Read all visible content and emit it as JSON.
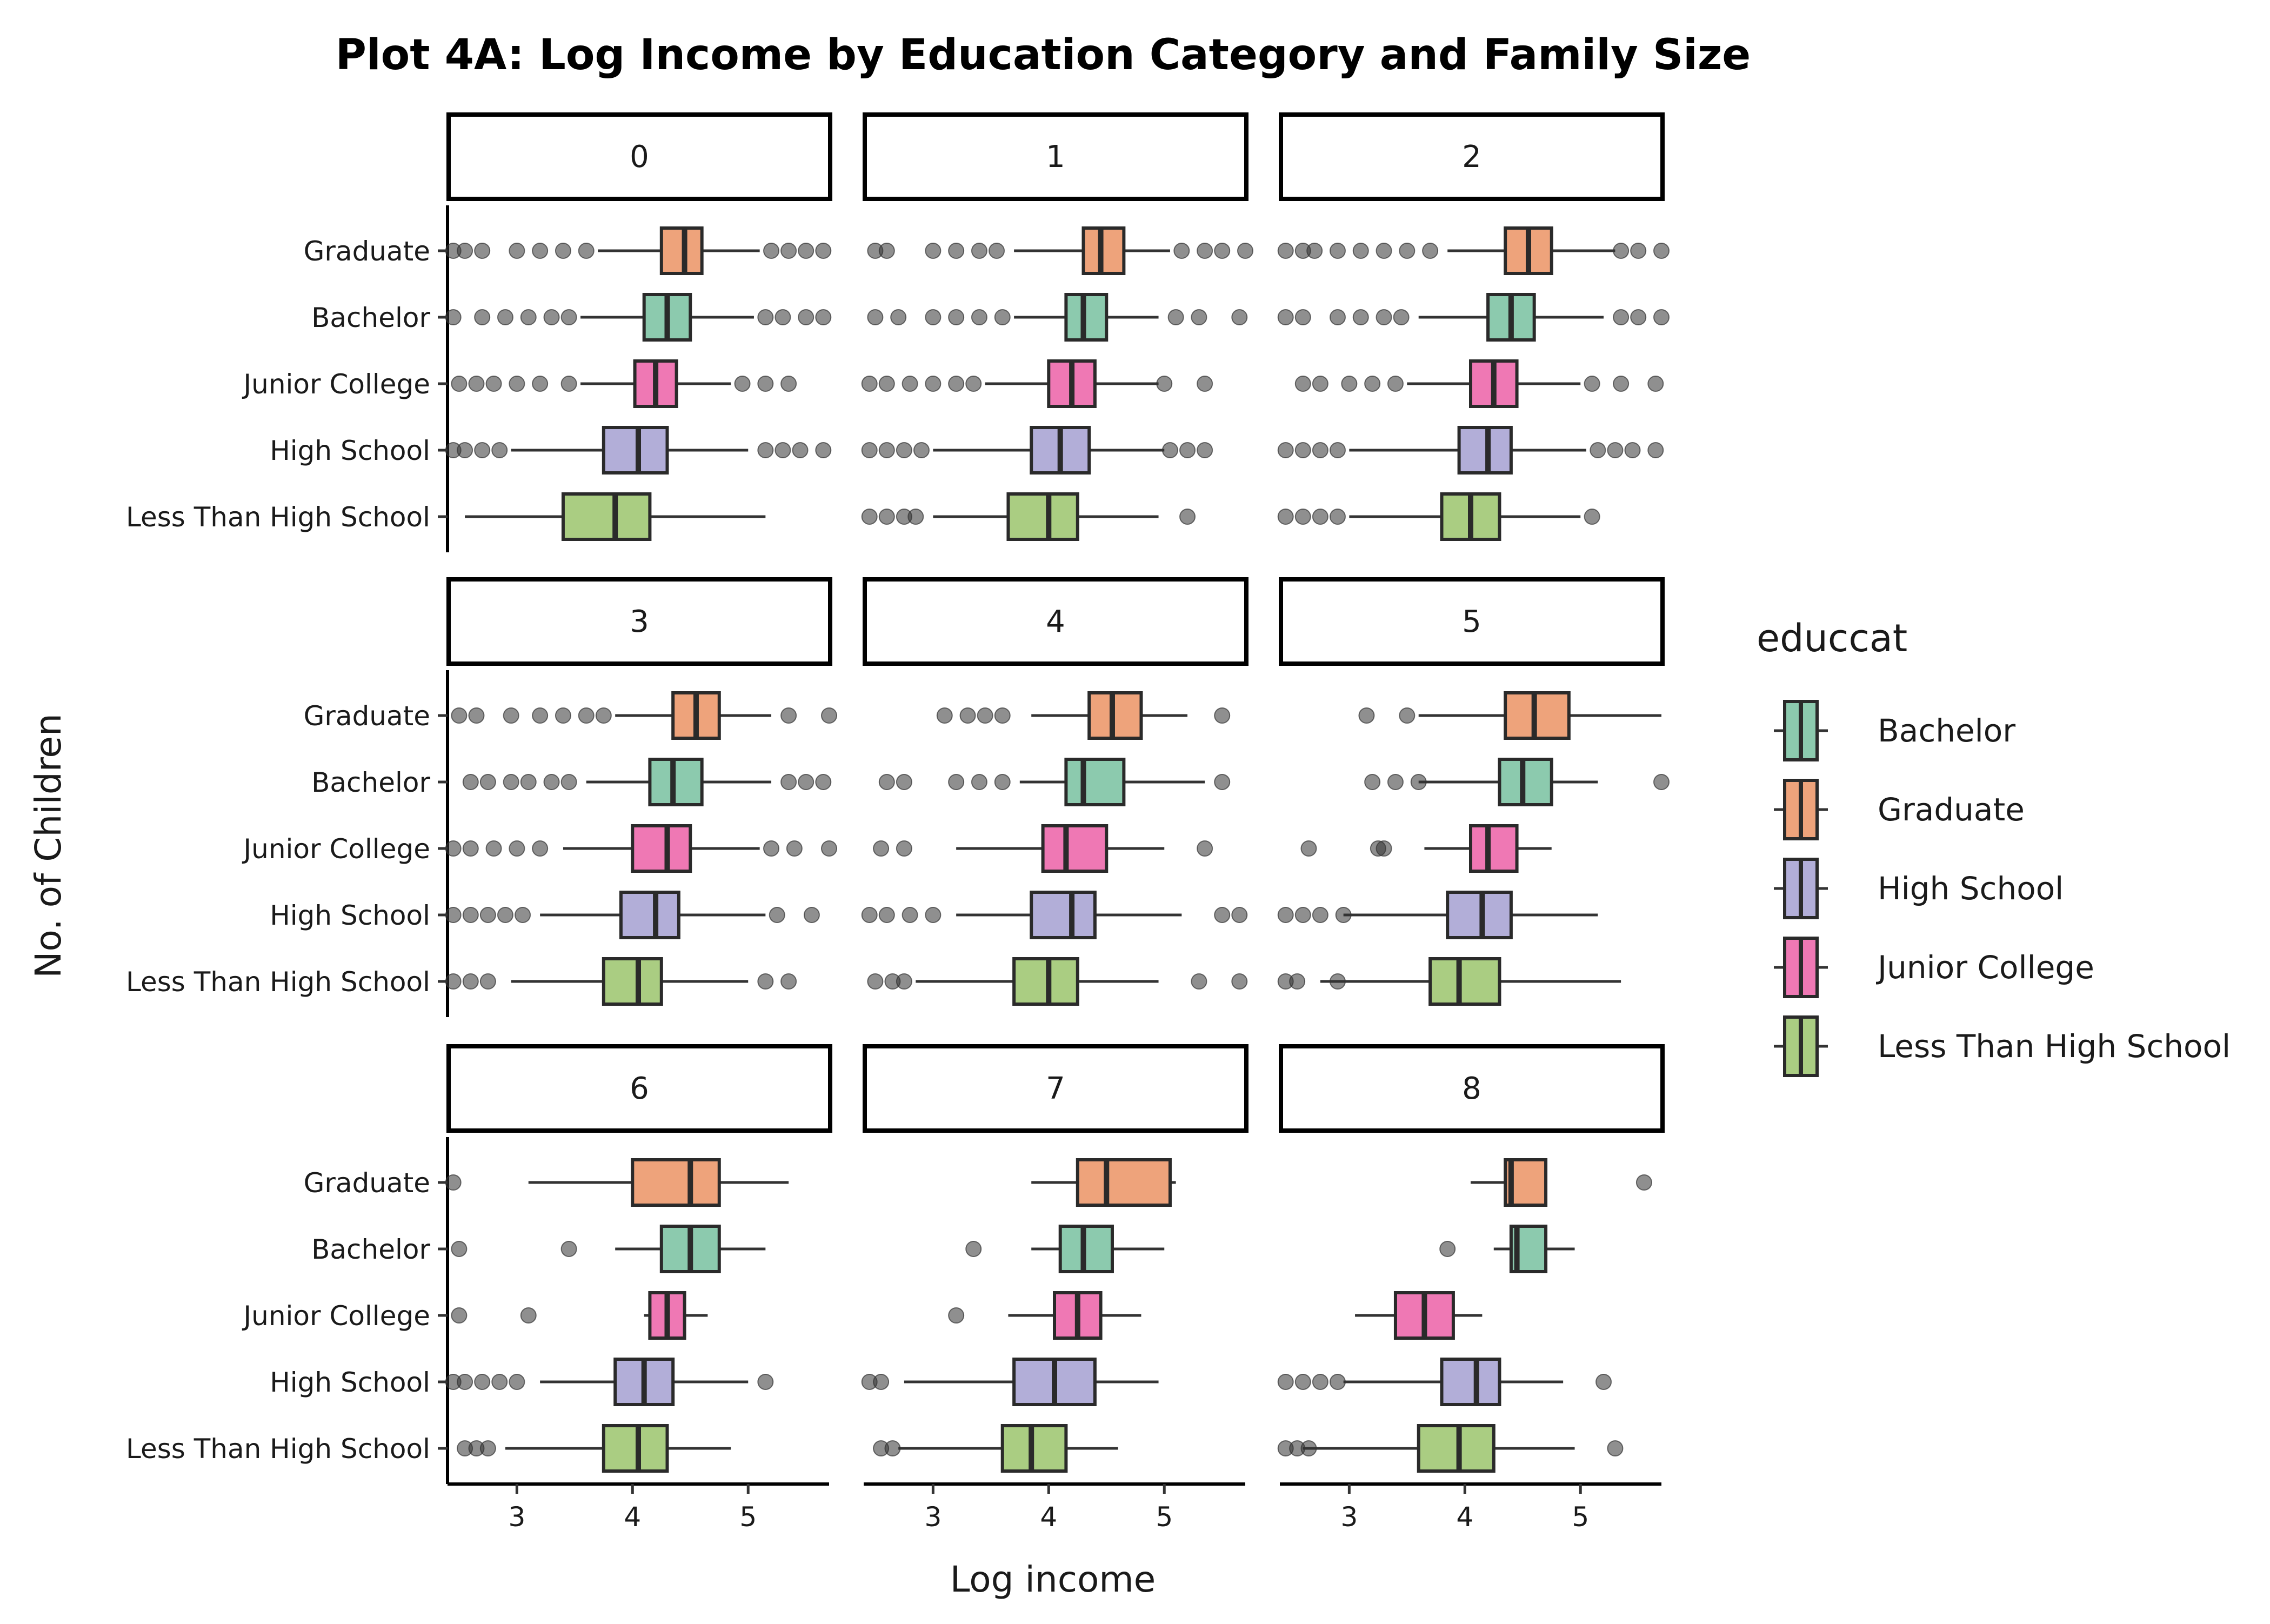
{
  "chart_data": {
    "type": "boxplot",
    "title": "Plot 4A: Log Income by Education Category and Family Size",
    "xlabel": "Log income",
    "ylabel": "No. of Children",
    "xlim": [
      2.4,
      5.7
    ],
    "x_ticks": [
      "3",
      "4",
      "5"
    ],
    "x_tick_values": [
      3,
      4,
      5
    ],
    "y_categories": [
      "Graduate",
      "Bachelor",
      "Junior College",
      "High School",
      "Less Than High School"
    ],
    "facet_variable": "No. of Children",
    "grid": false,
    "legend": {
      "title": "educcat",
      "position": "right",
      "items": [
        {
          "label": "Bachelor",
          "color": "#8ccaae"
        },
        {
          "label": "Graduate",
          "color": "#eea37b"
        },
        {
          "label": "High School",
          "color": "#b2aed8"
        },
        {
          "label": "Junior College",
          "color": "#ef78b4"
        },
        {
          "label": "Less Than High School",
          "color": "#aacd82"
        }
      ]
    },
    "colors": {
      "Bachelor": "#8ccaae",
      "Graduate": "#eea37b",
      "High School": "#b2aed8",
      "Junior College": "#ef78b4",
      "Less Than High School": "#aacd82"
    },
    "facets": [
      {
        "label": "0",
        "boxes": {
          "Graduate": {
            "whisker_low": 3.7,
            "q1": 4.25,
            "median": 4.45,
            "q3": 4.6,
            "whisker_high": 5.1,
            "outliers": [
              2.45,
              2.55,
              2.7,
              3.0,
              3.2,
              3.4,
              3.6,
              5.2,
              5.35,
              5.5,
              5.65
            ]
          },
          "Bachelor": {
            "whisker_low": 3.55,
            "q1": 4.1,
            "median": 4.3,
            "q3": 4.5,
            "whisker_high": 5.05,
            "outliers": [
              2.45,
              2.7,
              2.9,
              3.1,
              3.3,
              3.45,
              5.15,
              5.3,
              5.5,
              5.65
            ]
          },
          "Junior College": {
            "whisker_low": 3.55,
            "q1": 4.02,
            "median": 4.2,
            "q3": 4.38,
            "whisker_high": 4.85,
            "outliers": [
              2.5,
              2.65,
              2.8,
              3.0,
              3.2,
              3.45,
              4.95,
              5.15,
              5.35
            ]
          },
          "High School": {
            "whisker_low": 2.95,
            "q1": 3.75,
            "median": 4.05,
            "q3": 4.3,
            "whisker_high": 5.0,
            "outliers": [
              2.45,
              2.55,
              2.7,
              2.85,
              5.15,
              5.3,
              5.45,
              5.65
            ]
          },
          "Less Than High School": {
            "whisker_low": 2.55,
            "q1": 3.4,
            "median": 3.85,
            "q3": 4.15,
            "whisker_high": 5.15,
            "outliers": []
          }
        }
      },
      {
        "label": "1",
        "boxes": {
          "Graduate": {
            "whisker_low": 3.7,
            "q1": 4.3,
            "median": 4.45,
            "q3": 4.65,
            "whisker_high": 5.05,
            "outliers": [
              2.5,
              2.6,
              3.0,
              3.2,
              3.4,
              3.55,
              5.15,
              5.35,
              5.5,
              5.7
            ]
          },
          "Bachelor": {
            "whisker_low": 3.7,
            "q1": 4.15,
            "median": 4.3,
            "q3": 4.5,
            "whisker_high": 4.95,
            "outliers": [
              2.5,
              2.7,
              3.0,
              3.2,
              3.4,
              3.6,
              5.1,
              5.3,
              5.65
            ]
          },
          "Junior College": {
            "whisker_low": 3.45,
            "q1": 4.0,
            "median": 4.2,
            "q3": 4.4,
            "whisker_high": 4.95,
            "outliers": [
              2.45,
              2.6,
              2.8,
              3.0,
              3.2,
              3.35,
              5.0,
              5.35
            ]
          },
          "High School": {
            "whisker_low": 3.0,
            "q1": 3.85,
            "median": 4.1,
            "q3": 4.35,
            "whisker_high": 5.0,
            "outliers": [
              2.45,
              2.6,
              2.75,
              2.9,
              5.05,
              5.2,
              5.35
            ]
          },
          "Less Than High School": {
            "whisker_low": 3.0,
            "q1": 3.65,
            "median": 4.0,
            "q3": 4.25,
            "whisker_high": 4.95,
            "outliers": [
              2.45,
              2.6,
              2.75,
              2.85,
              5.2
            ]
          }
        }
      },
      {
        "label": "2",
        "boxes": {
          "Graduate": {
            "whisker_low": 3.85,
            "q1": 4.35,
            "median": 4.55,
            "q3": 4.75,
            "whisker_high": 5.3,
            "outliers": [
              2.45,
              2.6,
              2.7,
              2.9,
              3.1,
              3.3,
              3.5,
              3.7,
              5.35,
              5.5,
              5.7
            ]
          },
          "Bachelor": {
            "whisker_low": 3.6,
            "q1": 4.2,
            "median": 4.4,
            "q3": 4.6,
            "whisker_high": 5.2,
            "outliers": [
              2.45,
              2.6,
              2.9,
              3.1,
              3.3,
              3.45,
              5.35,
              5.5,
              5.7
            ]
          },
          "Junior College": {
            "whisker_low": 3.5,
            "q1": 4.05,
            "median": 4.25,
            "q3": 4.45,
            "whisker_high": 5.0,
            "outliers": [
              2.6,
              2.75,
              3.0,
              3.2,
              3.4,
              5.1,
              5.35,
              5.65
            ]
          },
          "High School": {
            "whisker_low": 3.0,
            "q1": 3.95,
            "median": 4.2,
            "q3": 4.4,
            "whisker_high": 5.05,
            "outliers": [
              2.45,
              2.6,
              2.75,
              2.9,
              5.15,
              5.3,
              5.45,
              5.65
            ]
          },
          "Less Than High School": {
            "whisker_low": 3.0,
            "q1": 3.8,
            "median": 4.05,
            "q3": 4.3,
            "whisker_high": 5.0,
            "outliers": [
              2.45,
              2.6,
              2.75,
              2.9,
              5.1
            ]
          }
        }
      },
      {
        "label": "3",
        "boxes": {
          "Graduate": {
            "whisker_low": 3.85,
            "q1": 4.35,
            "median": 4.55,
            "q3": 4.75,
            "whisker_high": 5.2,
            "outliers": [
              2.5,
              2.65,
              2.95,
              3.2,
              3.4,
              3.6,
              3.75,
              5.35,
              5.7
            ]
          },
          "Bachelor": {
            "whisker_low": 3.6,
            "q1": 4.15,
            "median": 4.35,
            "q3": 4.6,
            "whisker_high": 5.2,
            "outliers": [
              2.6,
              2.75,
              2.95,
              3.1,
              3.3,
              3.45,
              5.35,
              5.5,
              5.65
            ]
          },
          "Junior College": {
            "whisker_low": 3.4,
            "q1": 4.0,
            "median": 4.3,
            "q3": 4.5,
            "whisker_high": 5.1,
            "outliers": [
              2.45,
              2.6,
              2.8,
              3.0,
              3.2,
              5.2,
              5.4,
              5.7
            ]
          },
          "High School": {
            "whisker_low": 3.2,
            "q1": 3.9,
            "median": 4.2,
            "q3": 4.4,
            "whisker_high": 5.15,
            "outliers": [
              2.45,
              2.6,
              2.75,
              2.9,
              3.05,
              5.25,
              5.55
            ]
          },
          "Less Than High School": {
            "whisker_low": 2.95,
            "q1": 3.75,
            "median": 4.05,
            "q3": 4.25,
            "whisker_high": 5.0,
            "outliers": [
              2.45,
              2.6,
              2.75,
              5.15,
              5.35
            ]
          }
        }
      },
      {
        "label": "4",
        "boxes": {
          "Graduate": {
            "whisker_low": 3.85,
            "q1": 4.35,
            "median": 4.55,
            "q3": 4.8,
            "whisker_high": 5.2,
            "outliers": [
              3.1,
              3.3,
              3.45,
              3.6,
              5.5
            ]
          },
          "Bachelor": {
            "whisker_low": 3.75,
            "q1": 4.15,
            "median": 4.3,
            "q3": 4.65,
            "whisker_high": 5.35,
            "outliers": [
              2.6,
              2.75,
              3.2,
              3.4,
              3.6,
              5.5
            ]
          },
          "Junior College": {
            "whisker_low": 3.2,
            "q1": 3.95,
            "median": 4.15,
            "q3": 4.5,
            "whisker_high": 5.0,
            "outliers": [
              2.55,
              2.75,
              5.35
            ]
          },
          "High School": {
            "whisker_low": 3.2,
            "q1": 3.85,
            "median": 4.2,
            "q3": 4.4,
            "whisker_high": 5.15,
            "outliers": [
              2.45,
              2.6,
              2.8,
              3.0,
              5.5,
              5.65
            ]
          },
          "Less Than High School": {
            "whisker_low": 2.85,
            "q1": 3.7,
            "median": 4.0,
            "q3": 4.25,
            "whisker_high": 4.95,
            "outliers": [
              2.5,
              2.65,
              2.75,
              5.3,
              5.65
            ]
          }
        }
      },
      {
        "label": "5",
        "boxes": {
          "Graduate": {
            "whisker_low": 3.6,
            "q1": 4.35,
            "median": 4.6,
            "q3": 4.9,
            "whisker_high": 5.7,
            "outliers": [
              3.15,
              3.5
            ]
          },
          "Bachelor": {
            "whisker_low": 3.6,
            "q1": 4.3,
            "median": 4.5,
            "q3": 4.75,
            "whisker_high": 5.15,
            "outliers": [
              3.2,
              3.4,
              3.6,
              5.7
            ]
          },
          "Junior College": {
            "whisker_low": 3.65,
            "q1": 4.05,
            "median": 4.2,
            "q3": 4.45,
            "whisker_high": 4.75,
            "outliers": [
              2.65,
              3.25,
              3.3
            ]
          },
          "High School": {
            "whisker_low": 2.95,
            "q1": 3.85,
            "median": 4.15,
            "q3": 4.4,
            "whisker_high": 5.15,
            "outliers": [
              2.45,
              2.6,
              2.75,
              2.95
            ]
          },
          "Less Than High School": {
            "whisker_low": 2.75,
            "q1": 3.7,
            "median": 3.95,
            "q3": 4.3,
            "whisker_high": 5.35,
            "outliers": [
              2.45,
              2.55,
              2.9
            ]
          }
        }
      },
      {
        "label": "6",
        "boxes": {
          "Graduate": {
            "whisker_low": 3.1,
            "q1": 4.0,
            "median": 4.5,
            "q3": 4.75,
            "whisker_high": 5.35,
            "outliers": [
              2.45
            ]
          },
          "Bachelor": {
            "whisker_low": 3.85,
            "q1": 4.25,
            "median": 4.5,
            "q3": 4.75,
            "whisker_high": 5.15,
            "outliers": [
              2.5,
              3.45
            ]
          },
          "Junior College": {
            "whisker_low": 4.1,
            "q1": 4.15,
            "median": 4.3,
            "q3": 4.45,
            "whisker_high": 4.65,
            "outliers": [
              2.5,
              3.1
            ]
          },
          "High School": {
            "whisker_low": 3.2,
            "q1": 3.85,
            "median": 4.1,
            "q3": 4.35,
            "whisker_high": 5.0,
            "outliers": [
              2.45,
              2.55,
              2.7,
              2.85,
              3.0,
              5.15
            ]
          },
          "Less Than High School": {
            "whisker_low": 2.9,
            "q1": 3.75,
            "median": 4.05,
            "q3": 4.3,
            "whisker_high": 4.85,
            "outliers": [
              2.55,
              2.65,
              2.75
            ]
          }
        }
      },
      {
        "label": "7",
        "boxes": {
          "Graduate": {
            "whisker_low": 3.85,
            "q1": 4.25,
            "median": 4.5,
            "q3": 5.05,
            "whisker_high": 5.1,
            "outliers": []
          },
          "Bachelor": {
            "whisker_low": 3.85,
            "q1": 4.1,
            "median": 4.3,
            "q3": 4.55,
            "whisker_high": 5.0,
            "outliers": [
              3.35
            ]
          },
          "Junior College": {
            "whisker_low": 3.65,
            "q1": 4.05,
            "median": 4.25,
            "q3": 4.45,
            "whisker_high": 4.8,
            "outliers": [
              3.2
            ]
          },
          "High School": {
            "whisker_low": 2.75,
            "q1": 3.7,
            "median": 4.05,
            "q3": 4.4,
            "whisker_high": 4.95,
            "outliers": [
              2.45,
              2.55
            ]
          },
          "Less Than High School": {
            "whisker_low": 2.7,
            "q1": 3.6,
            "median": 3.85,
            "q3": 4.15,
            "whisker_high": 4.6,
            "outliers": [
              2.55,
              2.65
            ]
          }
        }
      },
      {
        "label": "8",
        "boxes": {
          "Graduate": {
            "whisker_low": 4.05,
            "q1": 4.35,
            "median": 4.4,
            "q3": 4.7,
            "whisker_high": 4.7,
            "outliers": [
              5.55
            ]
          },
          "Bachelor": {
            "whisker_low": 4.25,
            "q1": 4.4,
            "median": 4.45,
            "q3": 4.7,
            "whisker_high": 4.95,
            "outliers": [
              3.85
            ]
          },
          "Junior College": {
            "whisker_low": 3.05,
            "q1": 3.4,
            "median": 3.65,
            "q3": 3.9,
            "whisker_high": 4.15,
            "outliers": []
          },
          "High School": {
            "whisker_low": 2.95,
            "q1": 3.8,
            "median": 4.1,
            "q3": 4.3,
            "whisker_high": 4.85,
            "outliers": [
              2.45,
              2.6,
              2.75,
              2.9,
              5.2
            ]
          },
          "Less Than High School": {
            "whisker_low": 2.6,
            "q1": 3.6,
            "median": 3.95,
            "q3": 4.25,
            "whisker_high": 4.95,
            "outliers": [
              2.45,
              2.55,
              2.65,
              5.3
            ]
          }
        }
      }
    ]
  }
}
